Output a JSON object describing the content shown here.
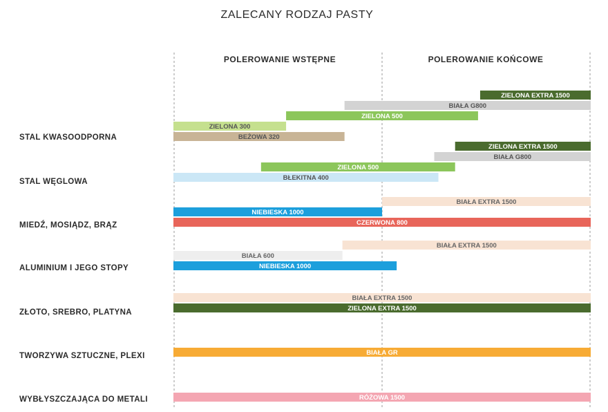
{
  "chart_data": {
    "type": "bar",
    "orientation": "horizontal-range",
    "title": "ZALECANY RODZAJ PASTY",
    "phases": [
      "POLEROWANIE WSTĘPNE",
      "POLEROWANIE KOŃCOWE"
    ],
    "x_range": [
      0,
      2
    ],
    "categories": [
      "STAL KWASOODPORNA",
      "STAL WĘGLOWA",
      "MIEDŹ, MOSIĄDZ, BRĄZ",
      "ALUMINIUM I JEGO STOPY",
      "ZŁOTO, SREBRO, PLATYNA",
      "TWORZYWA SZTUCZNE, PLEXI",
      "WYBŁYSZCZAJĄCA DO METALI"
    ],
    "bars": [
      {
        "category": 0,
        "slot": 0,
        "label": "ZIELONA EXTRA 1500",
        "start": 1.47,
        "end": 2.0,
        "color": "#4a6b2e",
        "text_color": "#ffffff"
      },
      {
        "category": 0,
        "slot": 1,
        "label": "BIAŁA G800",
        "start": 0.82,
        "end": 2.0,
        "color": "#d3d3d3",
        "text_color": "#555555"
      },
      {
        "category": 0,
        "slot": 2,
        "label": "ZIELONA 500",
        "start": 0.54,
        "end": 1.46,
        "color": "#8cc65b",
        "text_color": "#ffffff"
      },
      {
        "category": 0,
        "slot": 3,
        "label": "ZIELONA 300",
        "start": 0.0,
        "end": 0.54,
        "color": "#c5e08e",
        "text_color": "#555555"
      },
      {
        "category": 0,
        "slot": 4,
        "label": "BEŻOWA 320",
        "start": 0.0,
        "end": 0.82,
        "color": "#c8b496",
        "text_color": "#555555"
      },
      {
        "category": 1,
        "slot": 0,
        "label": "ZIELONA EXTRA 1500",
        "start": 1.35,
        "end": 2.0,
        "color": "#4a6b2e",
        "text_color": "#ffffff"
      },
      {
        "category": 1,
        "slot": 1,
        "label": "BIAŁA G800",
        "start": 1.25,
        "end": 2.0,
        "color": "#d3d3d3",
        "text_color": "#555555"
      },
      {
        "category": 1,
        "slot": 2,
        "label": "ZIELONA 500",
        "start": 0.42,
        "end": 1.35,
        "color": "#8cc65b",
        "text_color": "#ffffff"
      },
      {
        "category": 1,
        "slot": 3,
        "label": "BŁEKITNA 400",
        "start": 0.0,
        "end": 1.27,
        "color": "#cbe7f6",
        "text_color": "#555555"
      },
      {
        "category": 2,
        "slot": 0,
        "label": "BIAŁA EXTRA 1500",
        "start": 1.0,
        "end": 2.0,
        "color": "#f8e3d3",
        "text_color": "#666666"
      },
      {
        "category": 2,
        "slot": 1,
        "label": "NIEBIESKA 1000",
        "start": 0.0,
        "end": 1.0,
        "color": "#1c9fdc",
        "text_color": "#ffffff"
      },
      {
        "category": 2,
        "slot": 2,
        "label": "CZERWONA 800",
        "start": 0.0,
        "end": 2.0,
        "color": "#e8655a",
        "text_color": "#ffffff"
      },
      {
        "category": 3,
        "slot": 0,
        "label": "BIAŁA EXTRA 1500",
        "start": 0.81,
        "end": 2.0,
        "color": "#f8e3d3",
        "text_color": "#666666"
      },
      {
        "category": 3,
        "slot": 1,
        "label": "BIAŁA 600",
        "start": 0.0,
        "end": 0.81,
        "color": "#eeeeee",
        "text_color": "#666666"
      },
      {
        "category": 3,
        "slot": 2,
        "label": "NIEBIESKA 1000",
        "start": 0.0,
        "end": 1.07,
        "color": "#1c9fdc",
        "text_color": "#ffffff"
      },
      {
        "category": 4,
        "slot": 0,
        "label": "BIAŁA EXTRA 1500",
        "start": 0.0,
        "end": 2.0,
        "color": "#f8e3d3",
        "text_color": "#666666"
      },
      {
        "category": 4,
        "slot": 1,
        "label": "ZIELONA EXTRA 1500",
        "start": 0.0,
        "end": 2.0,
        "color": "#4a6b2e",
        "text_color": "#ffffff"
      },
      {
        "category": 5,
        "slot": 0,
        "label": "BIAŁA GR",
        "start": 0.0,
        "end": 2.0,
        "color": "#f7ab35",
        "text_color": "#ffffff"
      },
      {
        "category": 6,
        "slot": 0,
        "label": "RÓŻOWA 1500",
        "start": 0.0,
        "end": 2.0,
        "color": "#f4a6b2",
        "text_color": "#ffffff"
      }
    ]
  }
}
